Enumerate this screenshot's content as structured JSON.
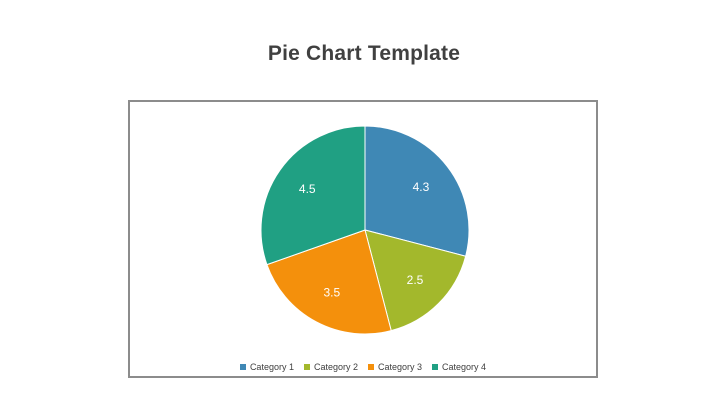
{
  "page": {
    "title": "Pie Chart Template"
  },
  "chart_data": {
    "type": "pie",
    "title": "",
    "categories": [
      "Category 1",
      "Category 2",
      "Category 3",
      "Category 4"
    ],
    "values": [
      4.3,
      2.5,
      3.5,
      4.5
    ],
    "labels": [
      "4.3",
      "2.5",
      "3.5",
      "4.5"
    ],
    "colors": [
      "#3f88b5",
      "#a3b82c",
      "#f4900c",
      "#20a083"
    ],
    "legend_position": "bottom"
  }
}
